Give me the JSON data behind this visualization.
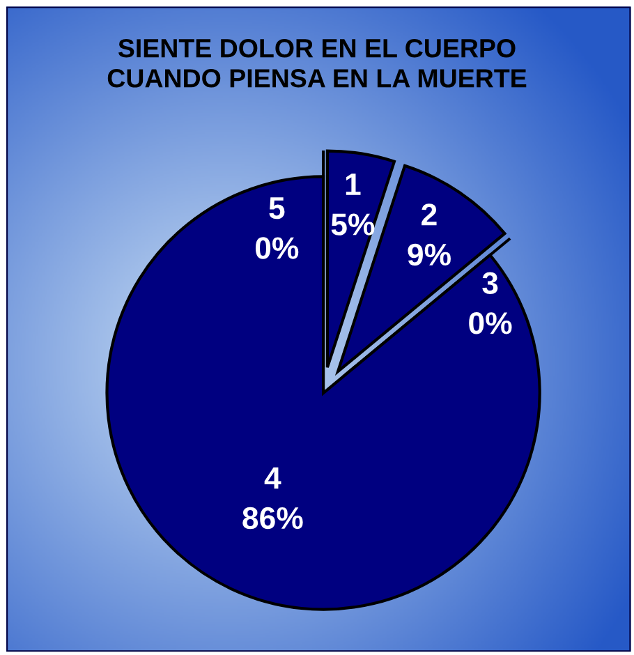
{
  "chart_data": {
    "type": "pie",
    "title": "SIENTE DOLOR EN EL CUERPO\nCUANDO PIENSA EN LA MUERTE",
    "categories": [
      "1",
      "2",
      "3",
      "4",
      "5"
    ],
    "values": [
      5,
      9,
      0,
      86,
      0
    ],
    "value_labels": [
      "5%",
      "9%",
      "0%",
      "86%",
      "0%"
    ],
    "colors": [
      "#000080",
      "#000080",
      "#000080",
      "#000080",
      "#000080"
    ],
    "legend": false
  }
}
